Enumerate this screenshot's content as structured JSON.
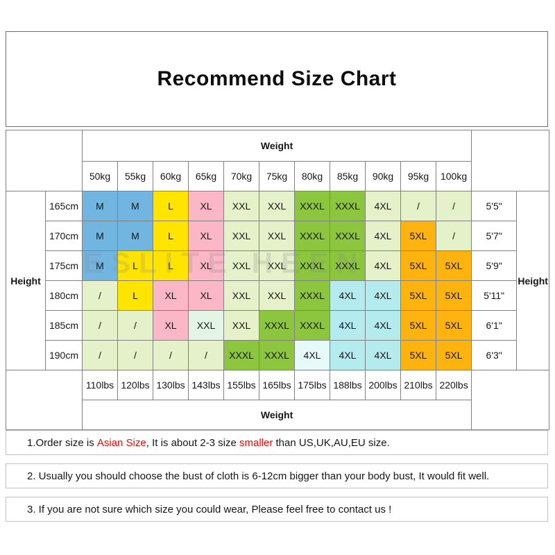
{
  "title": "Recommend Size Chart",
  "watermark": "ESLITE HEEN",
  "palette": {
    "blue": "#71B5E1",
    "yellow": "#FFE400",
    "pink": "#FBB7C5",
    "pale": "#E4F1C9",
    "green": "#8BC63E",
    "cyan": "#B3EBEF",
    "orange": "#FFB30F",
    "mint": "#E3F5E5",
    "palecyan": "#E7FAFA"
  },
  "table": {
    "weight_label_top": "Weight",
    "weight_label_bottom": "Weight",
    "height_label_left": "Height",
    "height_label_right": "Height",
    "kg_headers": [
      "50kg",
      "55kg",
      "60kg",
      "65kg",
      "70kg",
      "75kg",
      "80kg",
      "85kg",
      "90kg",
      "95kg",
      "100kg"
    ],
    "lbs_headers": [
      "110lbs",
      "120lbs",
      "130lbs",
      "143lbs",
      "155lbs",
      "165lbs",
      "175lbs",
      "188lbs",
      "200lbs",
      "210lbs",
      "220lbs"
    ],
    "rows": [
      {
        "cm": "165cm",
        "ft": "5'5\"",
        "cells": [
          {
            "label": "M",
            "color": "blue"
          },
          {
            "label": "M",
            "color": "blue"
          },
          {
            "label": "L",
            "color": "yellow"
          },
          {
            "label": "XL",
            "color": "pink"
          },
          {
            "label": "XXL",
            "color": "pale"
          },
          {
            "label": "XXL",
            "color": "pale"
          },
          {
            "label": "XXXL",
            "color": "green"
          },
          {
            "label": "XXXL",
            "color": "green"
          },
          {
            "label": "4XL",
            "color": "pale"
          },
          {
            "label": "/",
            "color": "pale"
          },
          {
            "label": "/",
            "color": "pale"
          }
        ]
      },
      {
        "cm": "170cm",
        "ft": "5'7\"",
        "cells": [
          {
            "label": "M",
            "color": "blue"
          },
          {
            "label": "M",
            "color": "blue"
          },
          {
            "label": "L",
            "color": "yellow"
          },
          {
            "label": "XL",
            "color": "pink"
          },
          {
            "label": "XXL",
            "color": "pale"
          },
          {
            "label": "XXL",
            "color": "pale"
          },
          {
            "label": "XXXL",
            "color": "green"
          },
          {
            "label": "XXXL",
            "color": "green"
          },
          {
            "label": "4XL",
            "color": "pale"
          },
          {
            "label": "5XL",
            "color": "orange"
          },
          {
            "label": "/",
            "color": "pale"
          }
        ]
      },
      {
        "cm": "175cm",
        "ft": "5'9\"",
        "cells": [
          {
            "label": "M",
            "color": "blue"
          },
          {
            "label": "L",
            "color": "yellow"
          },
          {
            "label": "L",
            "color": "yellow"
          },
          {
            "label": "XL",
            "color": "pink"
          },
          {
            "label": "XXL",
            "color": "pale"
          },
          {
            "label": "XXL",
            "color": "pale"
          },
          {
            "label": "XXXL",
            "color": "green"
          },
          {
            "label": "XXXL",
            "color": "green"
          },
          {
            "label": "4XL",
            "color": "pale"
          },
          {
            "label": "5XL",
            "color": "orange"
          },
          {
            "label": "5XL",
            "color": "orange"
          }
        ]
      },
      {
        "cm": "180cm",
        "ft": "5'11\"",
        "cells": [
          {
            "label": "/",
            "color": "pale"
          },
          {
            "label": "L",
            "color": "yellow"
          },
          {
            "label": "XL",
            "color": "pink"
          },
          {
            "label": "XL",
            "color": "pink"
          },
          {
            "label": "XXL",
            "color": "pale"
          },
          {
            "label": "XXL",
            "color": "pale"
          },
          {
            "label": "XXXL",
            "color": "green"
          },
          {
            "label": "4XL",
            "color": "cyan"
          },
          {
            "label": "4XL",
            "color": "cyan"
          },
          {
            "label": "5XL",
            "color": "orange"
          },
          {
            "label": "5XL",
            "color": "orange"
          }
        ]
      },
      {
        "cm": "185cm",
        "ft": "6'1\"",
        "cells": [
          {
            "label": "/",
            "color": "pale"
          },
          {
            "label": "/",
            "color": "pale"
          },
          {
            "label": "XL",
            "color": "pink"
          },
          {
            "label": "XXL",
            "color": "mint"
          },
          {
            "label": "XXL",
            "color": "pale"
          },
          {
            "label": "XXXL",
            "color": "green"
          },
          {
            "label": "XXXL",
            "color": "green"
          },
          {
            "label": "4XL",
            "color": "cyan"
          },
          {
            "label": "4XL",
            "color": "cyan"
          },
          {
            "label": "5XL",
            "color": "orange"
          },
          {
            "label": "5XL",
            "color": "orange"
          }
        ]
      },
      {
        "cm": "190cm",
        "ft": "6'3\"",
        "cells": [
          {
            "label": "/",
            "color": "pale"
          },
          {
            "label": "/",
            "color": "pale"
          },
          {
            "label": "/",
            "color": "pale"
          },
          {
            "label": "/",
            "color": "pale"
          },
          {
            "label": "XXXL",
            "color": "green"
          },
          {
            "label": "XXXL",
            "color": "green"
          },
          {
            "label": "4XL",
            "color": "palecyan"
          },
          {
            "label": "4XL",
            "color": "cyan"
          },
          {
            "label": "4XL",
            "color": "cyan"
          },
          {
            "label": "5XL",
            "color": "orange"
          },
          {
            "label": "5XL",
            "color": "orange"
          }
        ]
      }
    ]
  },
  "notes": [
    {
      "segments": [
        {
          "text": "1.Order size is ",
          "red": false
        },
        {
          "text": "Asian Size",
          "red": true
        },
        {
          "text": ", It is about 2-3 size ",
          "red": false
        },
        {
          "text": "smaller",
          "red": true
        },
        {
          "text": " than US,UK,AU,EU size.",
          "red": false
        }
      ]
    },
    {
      "segments": [
        {
          "text": "2. Usually you should choose the bust of cloth is 6-12cm bigger than your body bust, It would fit well.",
          "red": false
        }
      ]
    },
    {
      "segments": [
        {
          "text": "3. If you are not sure which size you could wear, Please feel free to contact us !",
          "red": false
        }
      ]
    }
  ]
}
